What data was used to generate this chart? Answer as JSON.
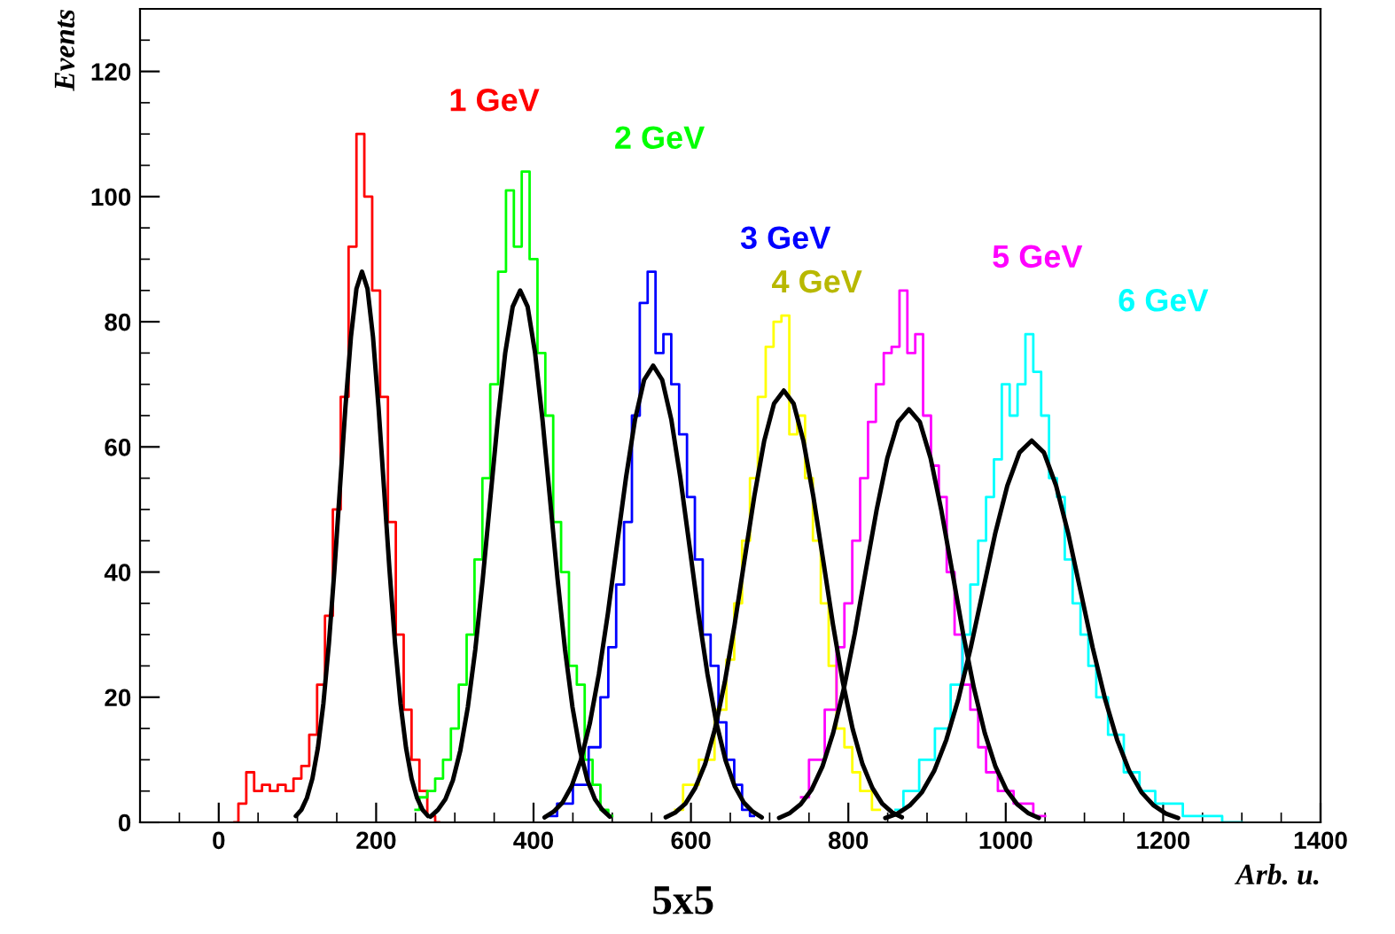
{
  "chart_data": {
    "type": "step",
    "title": "5x5",
    "xlabel": "Arb. u.",
    "ylabel": "Events",
    "xlim": [
      -100,
      1400
    ],
    "ylim": [
      0,
      130
    ],
    "xticks": [
      0,
      200,
      400,
      600,
      800,
      1000,
      1200,
      1400
    ],
    "yticks": [
      0,
      20,
      40,
      60,
      80,
      100,
      120
    ],
    "grid": false,
    "legend": false,
    "series": [
      {
        "name": "1 GeV",
        "color": "#ff0000",
        "x": [
          20,
          30,
          40,
          50,
          60,
          70,
          80,
          90,
          100,
          110,
          120,
          130,
          140,
          150,
          160,
          170,
          180,
          190,
          200,
          210,
          220,
          230,
          240,
          250,
          260,
          270,
          280
        ],
        "values": [
          0,
          3,
          8,
          5,
          6,
          5,
          6,
          5,
          7,
          9,
          14,
          22,
          33,
          50,
          68,
          92,
          110,
          100,
          85,
          68,
          48,
          30,
          18,
          10,
          5,
          1,
          0
        ]
      },
      {
        "name": "2 GeV",
        "color": "#00ff00",
        "x": [
          250,
          260,
          270,
          280,
          290,
          300,
          310,
          320,
          330,
          340,
          350,
          360,
          370,
          380,
          390,
          400,
          410,
          420,
          430,
          440,
          450,
          460,
          470,
          480,
          490,
          500
        ],
        "values": [
          2,
          4,
          5,
          7,
          10,
          15,
          22,
          30,
          42,
          55,
          70,
          88,
          101,
          92,
          104,
          90,
          75,
          65,
          48,
          40,
          25,
          22,
          10,
          6,
          2,
          1
        ]
      },
      {
        "name": "3 GeV",
        "color": "#0000ff",
        "x": [
          420,
          440,
          460,
          480,
          490,
          500,
          510,
          520,
          530,
          540,
          550,
          560,
          570,
          580,
          590,
          600,
          610,
          620,
          630,
          640,
          650,
          660,
          670,
          680
        ],
        "values": [
          1,
          3,
          6,
          12,
          20,
          28,
          38,
          48,
          65,
          83,
          88,
          75,
          78,
          70,
          62,
          52,
          42,
          30,
          25,
          16,
          10,
          6,
          2,
          1
        ]
      },
      {
        "name": "4 GeV",
        "color": "#ffff00",
        "x": [
          580,
          600,
          620,
          640,
          650,
          660,
          670,
          680,
          690,
          700,
          710,
          720,
          730,
          740,
          750,
          760,
          770,
          780,
          790,
          800,
          810,
          820,
          840
        ],
        "values": [
          2,
          6,
          10,
          18,
          26,
          35,
          45,
          55,
          68,
          76,
          80,
          81,
          62,
          65,
          55,
          45,
          35,
          25,
          15,
          12,
          8,
          5,
          2
        ]
      },
      {
        "name": "5 GeV",
        "color": "#ff00ff",
        "x": [
          740,
          760,
          780,
          790,
          800,
          810,
          820,
          830,
          840,
          850,
          860,
          870,
          880,
          890,
          900,
          910,
          920,
          930,
          940,
          950,
          960,
          970,
          980,
          1000,
          1020,
          1050
        ],
        "values": [
          4,
          10,
          18,
          28,
          35,
          45,
          55,
          64,
          70,
          75,
          76,
          85,
          75,
          78,
          65,
          57,
          52,
          40,
          30,
          22,
          18,
          12,
          8,
          5,
          3,
          1
        ]
      },
      {
        "name": "6 GeV",
        "color": "#00ffff",
        "x": [
          860,
          880,
          900,
          920,
          940,
          950,
          960,
          970,
          980,
          990,
          1000,
          1010,
          1020,
          1030,
          1040,
          1050,
          1060,
          1070,
          1080,
          1090,
          1100,
          1110,
          1120,
          1140,
          1160,
          1180,
          1200,
          1250,
          1300
        ],
        "values": [
          2,
          5,
          10,
          15,
          22,
          30,
          38,
          45,
          52,
          58,
          70,
          65,
          70,
          78,
          72,
          65,
          55,
          52,
          42,
          35,
          30,
          25,
          20,
          14,
          8,
          5,
          3,
          1,
          0
        ]
      },
      {
        "type": "line",
        "color": "#000000",
        "x": [
          98,
          105,
          112,
          119,
          126,
          133,
          140,
          147,
          154,
          161,
          168,
          175,
          182,
          189,
          196,
          203,
          210,
          217,
          224,
          231,
          238,
          245,
          252,
          259,
          266
        ],
        "values": [
          1.0,
          2.0,
          3.9,
          7.0,
          11.9,
          19.0,
          28.6,
          40.3,
          53.4,
          66.4,
          77.6,
          85.3,
          88,
          85.3,
          77.6,
          66.4,
          53.4,
          40.3,
          28.6,
          19.0,
          11.9,
          7.0,
          3.9,
          2.0,
          1.0
        ]
      },
      {
        "type": "line",
        "color": "#000000",
        "x": [
          269,
          278.5,
          288,
          297.5,
          307,
          316.5,
          326,
          335.5,
          345,
          354.5,
          364,
          373.5,
          383,
          392.5,
          402,
          411.5,
          421,
          430.5,
          440,
          449.5,
          459,
          468.5,
          478,
          487.5,
          497
        ],
        "values": [
          0.9,
          2.0,
          3.7,
          6.7,
          11.5,
          18.4,
          27.6,
          38.9,
          51.6,
          64.2,
          75.0,
          82.4,
          85,
          82.4,
          75.0,
          64.2,
          51.6,
          38.9,
          27.6,
          18.4,
          11.5,
          6.7,
          3.7,
          2.0,
          0.9
        ]
      },
      {
        "type": "line",
        "color": "#000000",
        "x": [
          414,
          425.5,
          437,
          448.5,
          460,
          471.5,
          483,
          494.5,
          506,
          517.5,
          529,
          540.5,
          552,
          563.5,
          575,
          586.5,
          598,
          609.5,
          621,
          632.5,
          644,
          655.5,
          667,
          678.5,
          690
        ],
        "values": [
          0.8,
          1.7,
          3.2,
          5.8,
          9.9,
          15.8,
          23.7,
          33.4,
          44.3,
          55.1,
          64.4,
          70.7,
          73,
          70.7,
          64.4,
          55.1,
          44.3,
          33.4,
          23.7,
          15.8,
          9.9,
          5.8,
          3.2,
          1.7,
          0.8
        ]
      },
      {
        "type": "line",
        "color": "#000000",
        "x": [
          568,
          580.5,
          593,
          605.5,
          618,
          630.5,
          643,
          655.5,
          668,
          680.5,
          693,
          705.5,
          718,
          730.5,
          743,
          755.5,
          768,
          780.5,
          793,
          805.5,
          818,
          830.5,
          843,
          855.5,
          868
        ],
        "values": [
          0.8,
          1.6,
          3.0,
          5.5,
          9.3,
          14.9,
          22.4,
          31.6,
          41.9,
          52.1,
          60.9,
          66.9,
          69,
          66.9,
          60.9,
          52.1,
          41.9,
          31.6,
          22.4,
          14.9,
          9.3,
          5.5,
          3.0,
          1.6,
          0.8
        ]
      },
      {
        "type": "line",
        "color": "#000000",
        "x": [
          712,
          725.75,
          739.5,
          753.25,
          767,
          780.75,
          794.5,
          808.25,
          822,
          835.75,
          849.5,
          863.25,
          877,
          890.75,
          904.5,
          918.25,
          932,
          945.75,
          959.5,
          973.25,
          987,
          1000.75,
          1014.5,
          1028.25,
          1042
        ],
        "values": [
          0.7,
          1.5,
          2.9,
          5.2,
          8.9,
          14.3,
          21.5,
          30.2,
          40.1,
          49.8,
          58.2,
          64.0,
          66,
          64.0,
          58.2,
          49.8,
          40.1,
          30.2,
          21.5,
          14.3,
          8.9,
          5.2,
          2.9,
          1.5,
          0.7
        ]
      },
      {
        "type": "line",
        "color": "#000000",
        "x": [
          847,
          862.5,
          878,
          893.5,
          909,
          924.5,
          940,
          955.5,
          971,
          986.5,
          1002,
          1017.5,
          1033,
          1048.5,
          1064,
          1079.5,
          1095,
          1110.5,
          1126,
          1141.5,
          1157,
          1172.5,
          1188,
          1203.5,
          1219
        ],
        "values": [
          0.7,
          1.4,
          2.7,
          4.8,
          8.2,
          13.2,
          19.8,
          27.9,
          37.0,
          46.1,
          53.8,
          59.1,
          61,
          59.1,
          53.8,
          46.1,
          37.0,
          27.9,
          19.8,
          13.2,
          8.2,
          4.8,
          2.7,
          1.4,
          0.7
        ]
      }
    ]
  }
}
